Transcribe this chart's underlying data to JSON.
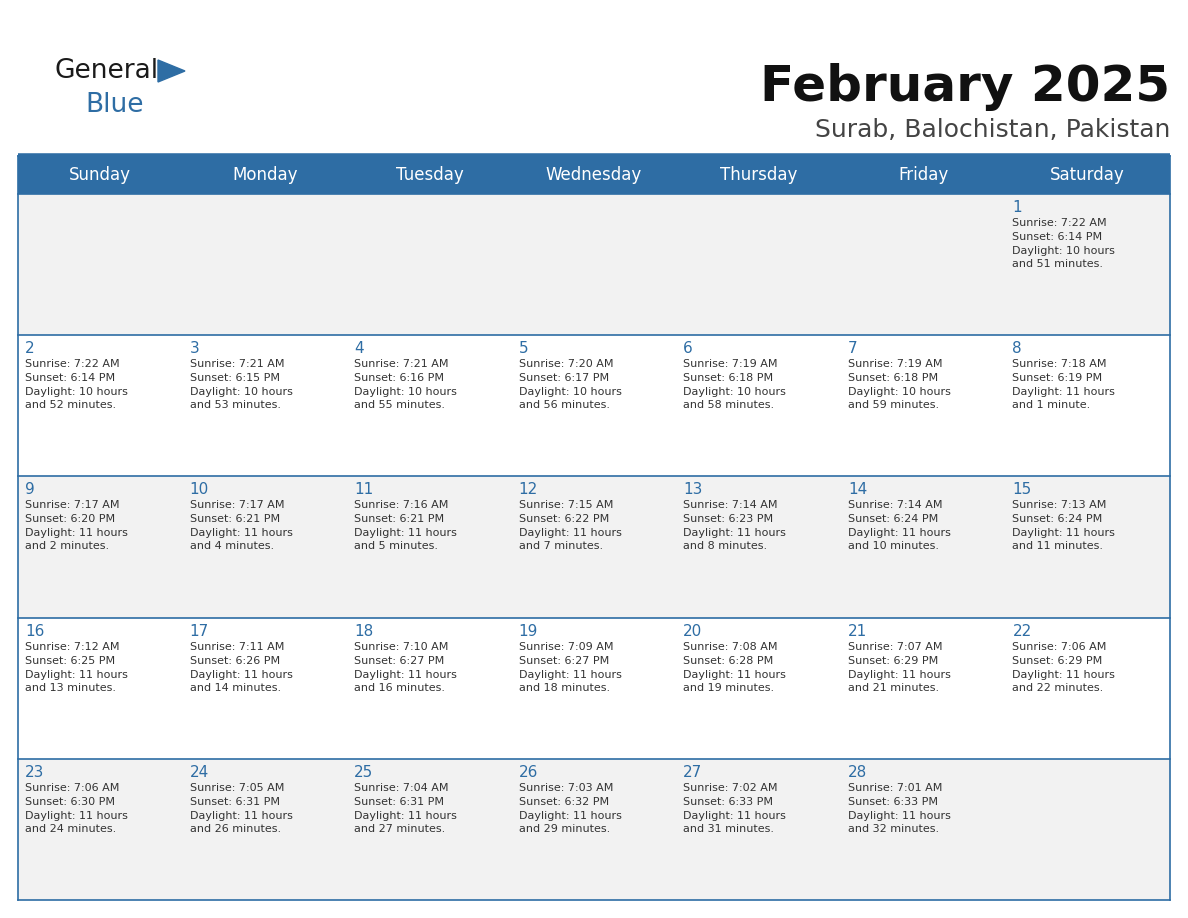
{
  "title": "February 2025",
  "subtitle": "Surab, Balochistan, Pakistan",
  "header_bg": "#2E6DA4",
  "header_text_color": "#FFFFFF",
  "cell_bg_even": "#F2F2F2",
  "cell_bg_odd": "#FFFFFF",
  "day_number_color": "#2E6DA4",
  "cell_text_color": "#333333",
  "days_of_week": [
    "Sunday",
    "Monday",
    "Tuesday",
    "Wednesday",
    "Thursday",
    "Friday",
    "Saturday"
  ],
  "border_color": "#2E6DA4",
  "logo_dark_color": "#1a1a1a",
  "logo_blue_color": "#2E6DA4",
  "calendar_data": [
    [
      {
        "day": "",
        "sunrise": "",
        "sunset": "",
        "daylight": ""
      },
      {
        "day": "",
        "sunrise": "",
        "sunset": "",
        "daylight": ""
      },
      {
        "day": "",
        "sunrise": "",
        "sunset": "",
        "daylight": ""
      },
      {
        "day": "",
        "sunrise": "",
        "sunset": "",
        "daylight": ""
      },
      {
        "day": "",
        "sunrise": "",
        "sunset": "",
        "daylight": ""
      },
      {
        "day": "",
        "sunrise": "",
        "sunset": "",
        "daylight": ""
      },
      {
        "day": "1",
        "sunrise": "7:22 AM",
        "sunset": "6:14 PM",
        "daylight": "10 hours\nand 51 minutes."
      }
    ],
    [
      {
        "day": "2",
        "sunrise": "7:22 AM",
        "sunset": "6:14 PM",
        "daylight": "10 hours\nand 52 minutes."
      },
      {
        "day": "3",
        "sunrise": "7:21 AM",
        "sunset": "6:15 PM",
        "daylight": "10 hours\nand 53 minutes."
      },
      {
        "day": "4",
        "sunrise": "7:21 AM",
        "sunset": "6:16 PM",
        "daylight": "10 hours\nand 55 minutes."
      },
      {
        "day": "5",
        "sunrise": "7:20 AM",
        "sunset": "6:17 PM",
        "daylight": "10 hours\nand 56 minutes."
      },
      {
        "day": "6",
        "sunrise": "7:19 AM",
        "sunset": "6:18 PM",
        "daylight": "10 hours\nand 58 minutes."
      },
      {
        "day": "7",
        "sunrise": "7:19 AM",
        "sunset": "6:18 PM",
        "daylight": "10 hours\nand 59 minutes."
      },
      {
        "day": "8",
        "sunrise": "7:18 AM",
        "sunset": "6:19 PM",
        "daylight": "11 hours\nand 1 minute."
      }
    ],
    [
      {
        "day": "9",
        "sunrise": "7:17 AM",
        "sunset": "6:20 PM",
        "daylight": "11 hours\nand 2 minutes."
      },
      {
        "day": "10",
        "sunrise": "7:17 AM",
        "sunset": "6:21 PM",
        "daylight": "11 hours\nand 4 minutes."
      },
      {
        "day": "11",
        "sunrise": "7:16 AM",
        "sunset": "6:21 PM",
        "daylight": "11 hours\nand 5 minutes."
      },
      {
        "day": "12",
        "sunrise": "7:15 AM",
        "sunset": "6:22 PM",
        "daylight": "11 hours\nand 7 minutes."
      },
      {
        "day": "13",
        "sunrise": "7:14 AM",
        "sunset": "6:23 PM",
        "daylight": "11 hours\nand 8 minutes."
      },
      {
        "day": "14",
        "sunrise": "7:14 AM",
        "sunset": "6:24 PM",
        "daylight": "11 hours\nand 10 minutes."
      },
      {
        "day": "15",
        "sunrise": "7:13 AM",
        "sunset": "6:24 PM",
        "daylight": "11 hours\nand 11 minutes."
      }
    ],
    [
      {
        "day": "16",
        "sunrise": "7:12 AM",
        "sunset": "6:25 PM",
        "daylight": "11 hours\nand 13 minutes."
      },
      {
        "day": "17",
        "sunrise": "7:11 AM",
        "sunset": "6:26 PM",
        "daylight": "11 hours\nand 14 minutes."
      },
      {
        "day": "18",
        "sunrise": "7:10 AM",
        "sunset": "6:27 PM",
        "daylight": "11 hours\nand 16 minutes."
      },
      {
        "day": "19",
        "sunrise": "7:09 AM",
        "sunset": "6:27 PM",
        "daylight": "11 hours\nand 18 minutes."
      },
      {
        "day": "20",
        "sunrise": "7:08 AM",
        "sunset": "6:28 PM",
        "daylight": "11 hours\nand 19 minutes."
      },
      {
        "day": "21",
        "sunrise": "7:07 AM",
        "sunset": "6:29 PM",
        "daylight": "11 hours\nand 21 minutes."
      },
      {
        "day": "22",
        "sunrise": "7:06 AM",
        "sunset": "6:29 PM",
        "daylight": "11 hours\nand 22 minutes."
      }
    ],
    [
      {
        "day": "23",
        "sunrise": "7:06 AM",
        "sunset": "6:30 PM",
        "daylight": "11 hours\nand 24 minutes."
      },
      {
        "day": "24",
        "sunrise": "7:05 AM",
        "sunset": "6:31 PM",
        "daylight": "11 hours\nand 26 minutes."
      },
      {
        "day": "25",
        "sunrise": "7:04 AM",
        "sunset": "6:31 PM",
        "daylight": "11 hours\nand 27 minutes."
      },
      {
        "day": "26",
        "sunrise": "7:03 AM",
        "sunset": "6:32 PM",
        "daylight": "11 hours\nand 29 minutes."
      },
      {
        "day": "27",
        "sunrise": "7:02 AM",
        "sunset": "6:33 PM",
        "daylight": "11 hours\nand 31 minutes."
      },
      {
        "day": "28",
        "sunrise": "7:01 AM",
        "sunset": "6:33 PM",
        "daylight": "11 hours\nand 32 minutes."
      },
      {
        "day": "",
        "sunrise": "",
        "sunset": "",
        "daylight": ""
      }
    ]
  ]
}
